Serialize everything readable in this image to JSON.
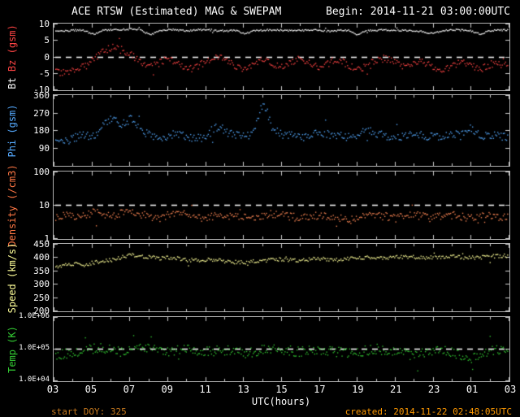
{
  "header": {
    "title": "ACE RTSW (Estimated) MAG & SWEPAM",
    "begin": "Begin: 2014-11-21 03:00:00UTC"
  },
  "x_axis": {
    "label": "UTC(hours)",
    "ticks": [
      "03",
      "05",
      "07",
      "09",
      "11",
      "13",
      "15",
      "17",
      "19",
      "21",
      "23",
      "01",
      "03"
    ],
    "range_hours": [
      3,
      27
    ]
  },
  "footer": {
    "start_doy": "start DOY: 325",
    "created": "created: 2014-11-22 02:48:05UTC"
  },
  "colors": {
    "background": "#000000",
    "frame": "#b0b0b0",
    "tick_text": "#ffffff",
    "dashed_line": "#ffffff",
    "bt": "#ffffff",
    "bz": "#ff4444",
    "phi": "#55aaff",
    "density": "#ff7744",
    "speed": "#ffff99",
    "temp": "#33cc33",
    "footer_text": "#ff9900"
  },
  "chart_data": [
    {
      "id": "mag",
      "type": "scatter",
      "scale": "linear",
      "ylim": [
        -10,
        10
      ],
      "yticks": [
        {
          "v": 10,
          "label": "10"
        },
        {
          "v": 5,
          "label": "5"
        },
        {
          "v": 0,
          "label": "0"
        },
        {
          "v": -5,
          "label": "-5"
        },
        {
          "v": -10,
          "label": "-10"
        }
      ],
      "dashed_at": 0,
      "ylabel_parts": [
        {
          "text": "Bt",
          "color": "#ffffff"
        },
        {
          "text": "Bz",
          "color": "#ff4444"
        },
        {
          "text": "(gsm)",
          "color": "#ff4444"
        }
      ],
      "series": [
        {
          "name": "Bt",
          "color": "#ffffff",
          "noise": 0.25,
          "values": [
            7.6,
            7.8,
            8.0,
            7.9,
            6.8,
            7.9,
            8.1,
            8.2,
            8.3,
            8.1,
            6.5,
            7.9,
            8.2,
            8.0,
            7.8,
            8.1,
            8.2,
            7.9,
            7.7,
            8.0,
            6.9,
            7.8,
            8.0,
            8.1,
            8.0,
            7.8,
            7.9,
            8.1,
            8.0,
            7.7,
            7.9,
            8.0,
            6.7,
            7.8,
            8.0,
            8.1,
            7.9,
            8.0,
            7.8,
            7.6,
            6.9,
            7.9,
            8.1,
            8.0,
            7.8,
            6.8,
            7.9,
            8.0,
            8.1
          ]
        },
        {
          "name": "Bz",
          "color": "#ff4444",
          "noise": 1.1,
          "values": [
            -4.5,
            -5.2,
            -4.0,
            -2.5,
            -1.0,
            1.5,
            2.8,
            2.0,
            0.5,
            -1.5,
            -3.0,
            -2.0,
            -0.5,
            -2.5,
            -4.0,
            -3.0,
            -1.5,
            0.5,
            -1.0,
            -2.8,
            -4.2,
            -2.5,
            -1.0,
            -2.0,
            -3.5,
            -2.0,
            -0.5,
            -1.8,
            -3.2,
            -2.2,
            -1.0,
            -2.5,
            -4.0,
            -2.8,
            -1.2,
            -0.5,
            -2.0,
            -3.5,
            -2.5,
            -1.5,
            -3.0,
            -4.5,
            -3.0,
            -1.5,
            -2.5,
            -3.8,
            -2.5,
            -1.5,
            -2.0
          ]
        }
      ]
    },
    {
      "id": "phi",
      "type": "scatter",
      "scale": "linear",
      "ylim": [
        0,
        360
      ],
      "yticks": [
        {
          "v": 360,
          "label": "360"
        },
        {
          "v": 270,
          "label": "270"
        },
        {
          "v": 180,
          "label": "180"
        },
        {
          "v": 90,
          "label": "90"
        }
      ],
      "dashed_at": null,
      "ylabel_parts": [
        {
          "text": "Phi (gsm)",
          "color": "#55aaff"
        }
      ],
      "series": [
        {
          "name": "Phi",
          "color": "#55aaff",
          "noise": 22,
          "values": [
            115,
            125,
            140,
            155,
            150,
            200,
            240,
            210,
            235,
            180,
            150,
            140,
            150,
            160,
            145,
            135,
            150,
            200,
            170,
            155,
            150,
            165,
            330,
            190,
            160,
            150,
            140,
            155,
            170,
            160,
            150,
            145,
            160,
            175,
            165,
            150,
            140,
            155,
            165,
            155,
            145,
            150,
            160,
            150,
            190,
            150,
            160,
            150,
            145
          ]
        }
      ]
    },
    {
      "id": "density",
      "type": "scatter",
      "scale": "log",
      "ylim": [
        1,
        100
      ],
      "yticks": [
        {
          "v": 100,
          "label": "100"
        },
        {
          "v": 10,
          "label": "10"
        },
        {
          "v": 1,
          "label": "1"
        }
      ],
      "dashed_at": 10,
      "ylabel_parts": [
        {
          "text": "Density (/cm3)",
          "color": "#ff7744"
        }
      ],
      "series": [
        {
          "name": "Density",
          "color": "#ff8855",
          "noise": 0.12,
          "values": [
            4.0,
            5.0,
            4.5,
            5.0,
            6.0,
            5.0,
            4.5,
            5.5,
            6.0,
            5.0,
            4.5,
            4.0,
            5.0,
            5.5,
            5.0,
            4.5,
            4.0,
            4.5,
            5.0,
            4.5,
            4.0,
            4.5,
            5.0,
            5.5,
            5.0,
            4.5,
            4.0,
            4.5,
            5.0,
            4.5,
            4.0,
            3.5,
            4.0,
            4.5,
            5.0,
            4.5,
            4.0,
            4.5,
            5.0,
            4.5,
            4.0,
            4.5,
            5.0,
            4.5,
            4.0,
            4.5,
            5.0,
            4.5,
            4.0
          ]
        }
      ]
    },
    {
      "id": "speed",
      "type": "scatter",
      "scale": "linear",
      "ylim": [
        200,
        450
      ],
      "yticks": [
        {
          "v": 450,
          "label": "450"
        },
        {
          "v": 400,
          "label": "400"
        },
        {
          "v": 350,
          "label": "350"
        },
        {
          "v": 300,
          "label": "300"
        },
        {
          "v": 250,
          "label": "250"
        },
        {
          "v": 200,
          "label": "200"
        }
      ],
      "dashed_at": null,
      "ylabel_parts": [
        {
          "text": "Speed (km/s)",
          "color": "#ffff99"
        }
      ],
      "series": [
        {
          "name": "Speed",
          "color": "#ffff99",
          "noise": 7,
          "values": [
            365,
            370,
            375,
            372,
            380,
            385,
            390,
            400,
            410,
            405,
            400,
            395,
            398,
            395,
            390,
            388,
            392,
            390,
            385,
            382,
            380,
            385,
            388,
            390,
            392,
            390,
            388,
            392,
            395,
            392,
            390,
            395,
            400,
            398,
            395,
            398,
            400,
            402,
            400,
            398,
            400,
            402,
            405,
            400,
            398,
            400,
            402,
            405,
            405
          ]
        }
      ]
    },
    {
      "id": "temp",
      "type": "scatter",
      "scale": "log",
      "ylim": [
        10000,
        1000000
      ],
      "yticks": [
        {
          "v": 1000000,
          "label": "1.0E+06"
        },
        {
          "v": 100000,
          "label": "1.0E+05"
        },
        {
          "v": 10000,
          "label": "1.0E+04"
        }
      ],
      "dashed_at": 100000,
      "ylabel_parts": [
        {
          "text": "Temp (K)",
          "color": "#33cc33"
        }
      ],
      "series": [
        {
          "name": "Temp",
          "color": "#33cc33",
          "noise": 0.16,
          "values": [
            60000,
            70000,
            80000,
            90000,
            100000,
            110000,
            90000,
            80000,
            100000,
            120000,
            100000,
            90000,
            80000,
            90000,
            100000,
            90000,
            80000,
            85000,
            90000,
            80000,
            70000,
            80000,
            90000,
            95000,
            90000,
            85000,
            80000,
            85000,
            90000,
            85000,
            80000,
            75000,
            80000,
            90000,
            100000,
            90000,
            80000,
            70000,
            60000,
            70000,
            80000,
            90000,
            80000,
            60000,
            50000,
            70000,
            90000,
            90000,
            85000
          ]
        }
      ]
    }
  ]
}
